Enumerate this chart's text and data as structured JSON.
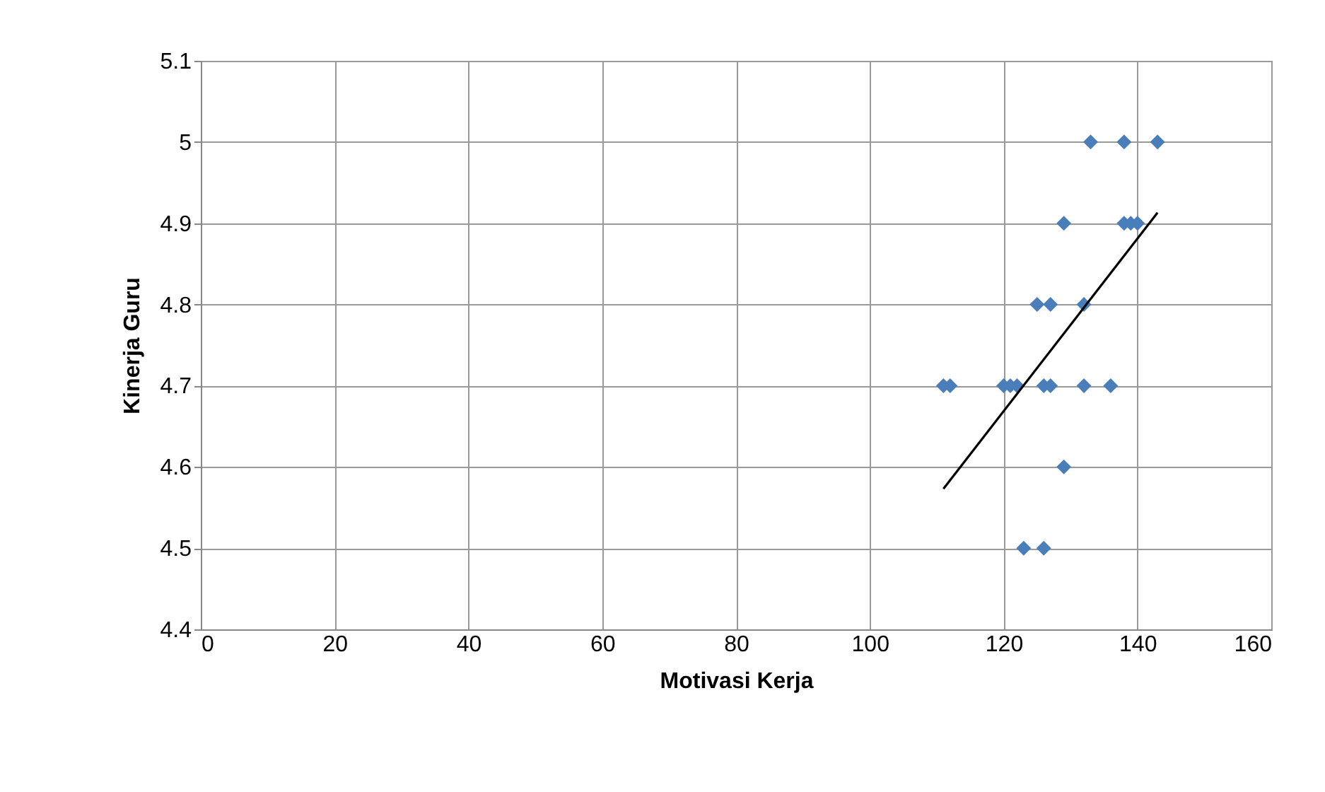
{
  "chart_data": {
    "type": "scatter",
    "xlabel": "Motivasi Kerja",
    "ylabel": "Kinerja Guru",
    "xlim": [
      0,
      160
    ],
    "xticks": [
      0,
      20,
      40,
      60,
      80,
      100,
      120,
      140,
      160
    ],
    "ylim": [
      4.4,
      5.1
    ],
    "yticks": [
      4.4,
      4.5,
      4.6,
      4.7,
      4.8,
      4.9,
      5,
      5.1
    ],
    "grid": true,
    "series": [
      {
        "marker": "diamond",
        "color": "#4a7ebb",
        "x": [
          133,
          138,
          143,
          129,
          138,
          139,
          140,
          125,
          127,
          132,
          111,
          112,
          120,
          121,
          122,
          126,
          127,
          132,
          136,
          129,
          123,
          126
        ],
        "values": [
          5,
          5,
          5,
          4.9,
          4.9,
          4.9,
          4.9,
          4.8,
          4.8,
          4.8,
          4.7,
          4.7,
          4.7,
          4.7,
          4.7,
          4.7,
          4.7,
          4.7,
          4.7,
          4.6,
          4.5,
          4.5
        ]
      },
      {
        "type": "line",
        "color": "#000000",
        "x": [
          111,
          143
        ],
        "values": [
          4.573,
          4.913
        ]
      }
    ]
  }
}
